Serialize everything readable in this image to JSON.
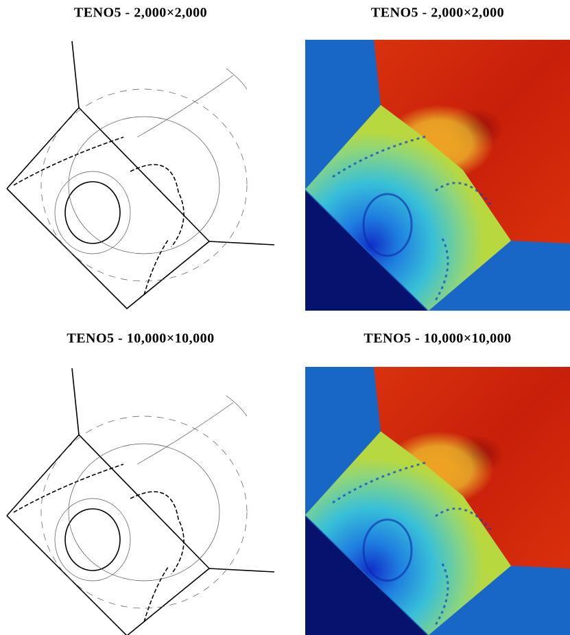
{
  "panels": [
    {
      "title": "TENO5 - 2,000×2,000"
    },
    {
      "title": "TENO5 - 2,000×2,000"
    },
    {
      "title": "TENO5 - 10,000×10,000"
    },
    {
      "title": "TENO5 - 10,000×10,000"
    }
  ]
}
